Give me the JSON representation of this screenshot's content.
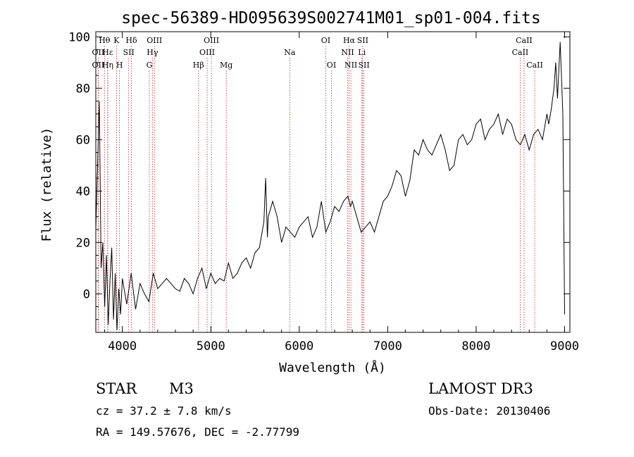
{
  "chart_data": {
    "type": "line",
    "title": "spec-56389-HD095639S002741M01_sp01-004.fits",
    "xlabel": "Wavelength (Å)",
    "ylabel": "Flux (relative)",
    "xlim": [
      3700,
      9060
    ],
    "ylim": [
      -15,
      102
    ],
    "x_ticks": [
      4000,
      5000,
      6000,
      7000,
      8000,
      9000
    ],
    "y_ticks": [
      0,
      20,
      40,
      60,
      80,
      100
    ],
    "series": [
      {
        "name": "flux",
        "x": [
          3700,
          3720,
          3740,
          3760,
          3780,
          3800,
          3820,
          3840,
          3860,
          3880,
          3900,
          3920,
          3940,
          3960,
          3980,
          4000,
          4050,
          4100,
          4150,
          4200,
          4250,
          4300,
          4350,
          4400,
          4450,
          4500,
          4550,
          4600,
          4650,
          4700,
          4750,
          4800,
          4850,
          4900,
          4950,
          5000,
          5050,
          5100,
          5150,
          5200,
          5250,
          5300,
          5350,
          5400,
          5450,
          5500,
          5550,
          5600,
          5620,
          5640,
          5650,
          5700,
          5750,
          5800,
          5850,
          5900,
          5950,
          6000,
          6050,
          6100,
          6150,
          6200,
          6250,
          6300,
          6350,
          6400,
          6450,
          6500,
          6550,
          6580,
          6600,
          6650,
          6700,
          6750,
          6800,
          6850,
          6900,
          6950,
          7000,
          7050,
          7100,
          7150,
          7200,
          7250,
          7300,
          7350,
          7400,
          7450,
          7500,
          7550,
          7600,
          7650,
          7700,
          7750,
          7800,
          7850,
          7900,
          7950,
          8000,
          8050,
          8100,
          8150,
          8200,
          8250,
          8300,
          8350,
          8400,
          8450,
          8500,
          8550,
          8600,
          8650,
          8700,
          8750,
          8800,
          8820,
          8850,
          8880,
          8900,
          8920,
          8950,
          8980,
          9000
        ],
        "values": [
          25,
          50,
          75,
          10,
          20,
          -5,
          15,
          -12,
          5,
          18,
          -10,
          8,
          -14,
          2,
          -8,
          6,
          -4,
          8,
          -6,
          4,
          0,
          -3,
          8,
          2,
          4,
          6,
          4,
          2,
          1,
          6,
          4,
          0,
          6,
          10,
          2,
          8,
          4,
          6,
          5,
          12,
          6,
          8,
          12,
          14,
          10,
          16,
          18,
          28,
          45,
          22,
          30,
          36,
          30,
          20,
          26,
          24,
          22,
          26,
          28,
          30,
          22,
          26,
          36,
          24,
          28,
          34,
          32,
          36,
          38,
          34,
          36,
          30,
          24,
          26,
          28,
          24,
          30,
          36,
          38,
          42,
          48,
          46,
          38,
          44,
          56,
          54,
          60,
          56,
          54,
          58,
          62,
          56,
          48,
          50,
          60,
          62,
          58,
          60,
          66,
          68,
          60,
          64,
          66,
          70,
          62,
          68,
          66,
          60,
          58,
          62,
          56,
          62,
          64,
          60,
          70,
          66,
          72,
          80,
          90,
          76,
          98,
          70,
          -8
        ]
      }
    ],
    "spectral_lines": [
      {
        "label": "Hθ",
        "x": 3798,
        "row": 1
      },
      {
        "label": "OII",
        "x": 3727,
        "row": 2
      },
      {
        "label": "OII",
        "x": 3727,
        "row": 3
      },
      {
        "label": "Hε",
        "x": 3835,
        "row": 2
      },
      {
        "label": "Hη",
        "x": 3835,
        "row": 3
      },
      {
        "label": "K",
        "x": 3934,
        "row": 1
      },
      {
        "label": "H",
        "x": 3968,
        "row": 3
      },
      {
        "label": "SII",
        "x": 4072,
        "row": 2
      },
      {
        "label": "Hδ",
        "x": 4102,
        "row": 1
      },
      {
        "label": "OIII",
        "x": 4363,
        "row": 1
      },
      {
        "label": "Hγ",
        "x": 4340,
        "row": 2
      },
      {
        "label": "G",
        "x": 4305,
        "row": 3
      },
      {
        "label": "Hβ",
        "x": 4861,
        "row": 3
      },
      {
        "label": "OIII",
        "x": 5007,
        "row": 1
      },
      {
        "label": "OIII",
        "x": 4959,
        "row": 2
      },
      {
        "label": "Mg",
        "x": 5175,
        "row": 3
      },
      {
        "label": "Na",
        "x": 5893,
        "row": 2
      },
      {
        "label": "OI",
        "x": 6300,
        "row": 1
      },
      {
        "label": "OI",
        "x": 6364,
        "row": 3
      },
      {
        "label": "Hα",
        "x": 6563,
        "row": 1
      },
      {
        "label": "NII",
        "x": 6548,
        "row": 2
      },
      {
        "label": "NII",
        "x": 6584,
        "row": 3
      },
      {
        "label": "SII",
        "x": 6717,
        "row": 1
      },
      {
        "label": "Li",
        "x": 6708,
        "row": 2
      },
      {
        "label": "SII",
        "x": 6731,
        "row": 3
      },
      {
        "label": "CaII",
        "x": 8542,
        "row": 1
      },
      {
        "label": "CaII",
        "x": 8498,
        "row": 2
      },
      {
        "label": "CaII",
        "x": 8662,
        "row": 3
      }
    ]
  },
  "info": {
    "class": "STAR",
    "subclass": "M3",
    "survey": "LAMOST DR3",
    "cz": "cz = 37.2 ± 7.8 km/s",
    "obs_date": "Obs-Date: 20130406",
    "radec": "RA = 149.57676, DEC =  -2.77799"
  }
}
